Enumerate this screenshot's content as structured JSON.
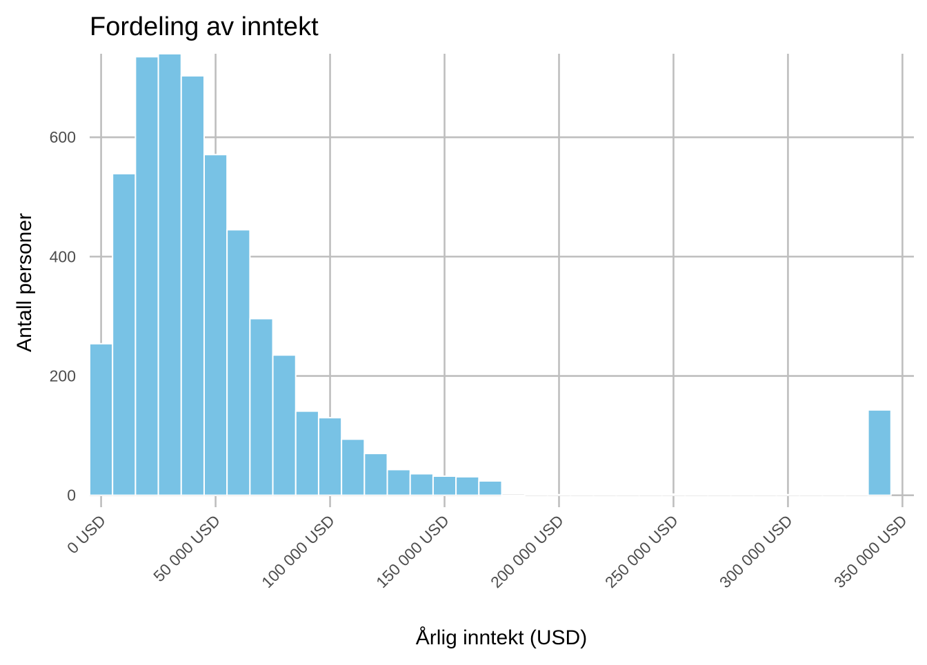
{
  "chart_data": {
    "type": "bar",
    "title": "Fordeling av inntekt",
    "xlabel": "Årlig inntekt (USD)",
    "ylabel": "Antall personer",
    "xlim": [
      -5000,
      355000
    ],
    "ylim": [
      -20,
      740
    ],
    "x_ticks": [
      0,
      50000,
      100000,
      150000,
      200000,
      250000,
      300000,
      350000
    ],
    "x_tick_labels": [
      "0 USD",
      "50 000 USD",
      "100 000 USD",
      "150 000 USD",
      "200 000 USD",
      "250 000 USD",
      "300 000 USD",
      "350 000 USD"
    ],
    "y_ticks": [
      0,
      200,
      400,
      600
    ],
    "y_tick_labels": [
      "0",
      "200",
      "400",
      "600"
    ],
    "bin_width": 10000,
    "bins_start": [
      0,
      10000,
      20000,
      30000,
      40000,
      50000,
      60000,
      70000,
      80000,
      90000,
      100000,
      110000,
      120000,
      130000,
      140000,
      150000,
      160000,
      170000,
      180000,
      190000,
      200000,
      210000,
      220000,
      230000,
      240000,
      250000,
      260000,
      270000,
      280000,
      290000,
      300000,
      310000,
      320000,
      330000,
      340000
    ],
    "values": [
      254,
      539,
      735,
      740,
      703,
      571,
      445,
      296,
      235,
      141,
      130,
      94,
      70,
      43,
      36,
      32,
      31,
      24,
      0,
      1,
      1,
      1,
      1,
      1,
      2,
      2,
      1,
      1,
      1,
      1,
      1,
      1,
      1,
      1,
      143
    ],
    "grid": true,
    "bar_color": "#78c2e5",
    "bar_edge_color": "#ffffff",
    "grid_color": "#bebebe"
  }
}
